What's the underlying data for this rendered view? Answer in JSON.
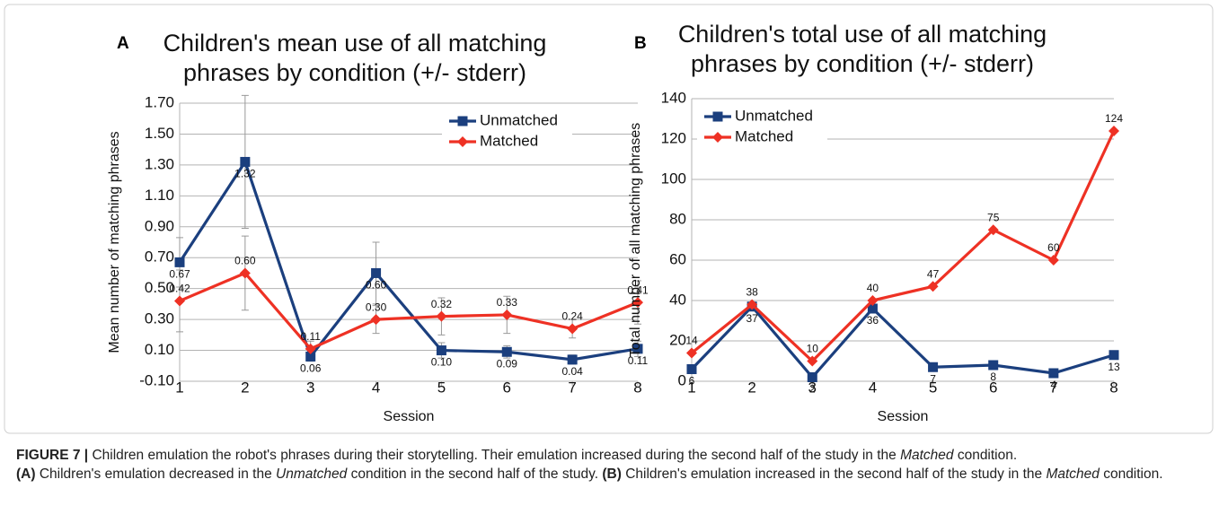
{
  "chart_data": [
    {
      "type": "line",
      "panel": "A",
      "title": "Children's mean use of all matching phrases by condition (+/- stderr)",
      "x_label": "Session",
      "y_label": "Mean number of matching phrases",
      "x": [
        1,
        2,
        3,
        4,
        5,
        6,
        7,
        8
      ],
      "xlim": [
        1,
        8
      ],
      "xticks": [
        1,
        2,
        3,
        4,
        5,
        6,
        7,
        8
      ],
      "ylim": [
        -0.1,
        1.7
      ],
      "yticks": [
        {
          "value": -0.1,
          "label": "-0.10"
        },
        {
          "value": 0.1,
          "label": "0.10"
        },
        {
          "value": 0.3,
          "label": "0.30"
        },
        {
          "value": 0.5,
          "label": "0.50"
        },
        {
          "value": 0.7,
          "label": "0.70"
        },
        {
          "value": 0.9,
          "label": "0.90"
        },
        {
          "value": 1.1,
          "label": "1.10"
        },
        {
          "value": 1.3,
          "label": "1.30"
        },
        {
          "value": 1.5,
          "label": "1.50"
        },
        {
          "value": 1.7,
          "label": "1.70"
        }
      ],
      "grid": true,
      "legend": "upper right",
      "series": [
        {
          "name": "Unmatched",
          "color": "#1b3f7e",
          "marker": "square",
          "values": [
            0.67,
            1.32,
            0.06,
            0.6,
            0.1,
            0.09,
            0.04,
            0.11
          ],
          "value_labels": [
            "0.67",
            "1.32",
            "0.06",
            "0.60",
            "0.10",
            "0.09",
            "0.04",
            "0.11"
          ],
          "errors": [
            0.16,
            0.43,
            0.03,
            0.2,
            0.05,
            0.04,
            0.03,
            0.05
          ]
        },
        {
          "name": "Matched",
          "color": "#ee3124",
          "marker": "diamond",
          "values": [
            0.42,
            0.6,
            0.11,
            0.3,
            0.32,
            0.33,
            0.24,
            0.41
          ],
          "value_labels": [
            "0.42",
            "0.60",
            "0.11",
            "0.30",
            "0.32",
            "0.33",
            "0.24",
            "0.41"
          ],
          "errors": [
            0.2,
            0.24,
            0.05,
            0.09,
            0.12,
            0.12,
            0.06,
            0.14
          ]
        }
      ]
    },
    {
      "type": "line",
      "panel": "B",
      "title": "Children's total use of all matching phrases by condition (+/- stderr)",
      "x_label": "Session",
      "y_label": "Total number of all matching phrases",
      "x": [
        1,
        2,
        3,
        4,
        5,
        6,
        7,
        8
      ],
      "xlim": [
        1,
        8
      ],
      "xticks": [
        1,
        2,
        3,
        4,
        5,
        6,
        7,
        8
      ],
      "ylim": [
        0,
        140
      ],
      "yticks": [
        0,
        20,
        40,
        60,
        80,
        100,
        120,
        140
      ],
      "grid": true,
      "legend": "upper left",
      "series": [
        {
          "name": "Unmatched",
          "color": "#1b3f7e",
          "marker": "square",
          "values": [
            6,
            37,
            2,
            36,
            7,
            8,
            4,
            13
          ]
        },
        {
          "name": "Matched",
          "color": "#ee3124",
          "marker": "diamond",
          "values": [
            14,
            38,
            10,
            40,
            47,
            75,
            60,
            124
          ]
        }
      ]
    }
  ],
  "caption": [
    {
      "text": "FIGURE 7 |",
      "style": "bold"
    },
    {
      "text": " Children emulation the robot's phrases during their storytelling. Their emulation increased during the second half of the study in the ",
      "style": "normal"
    },
    {
      "text": "Matched",
      "style": "italic"
    },
    {
      "text": " condition.",
      "style": "normal"
    },
    {
      "text": "(A)",
      "style": "bold",
      "newline": true
    },
    {
      "text": " Children's emulation decreased in the ",
      "style": "normal"
    },
    {
      "text": "Unmatched",
      "style": "italic"
    },
    {
      "text": " condition in the second half of the study. ",
      "style": "normal"
    },
    {
      "text": "(B)",
      "style": "bold"
    },
    {
      "text": " Children's emulation increased in the second half of the study in the ",
      "style": "normal"
    },
    {
      "text": "Matched",
      "style": "italic"
    },
    {
      "text": " condition.",
      "style": "normal"
    }
  ]
}
